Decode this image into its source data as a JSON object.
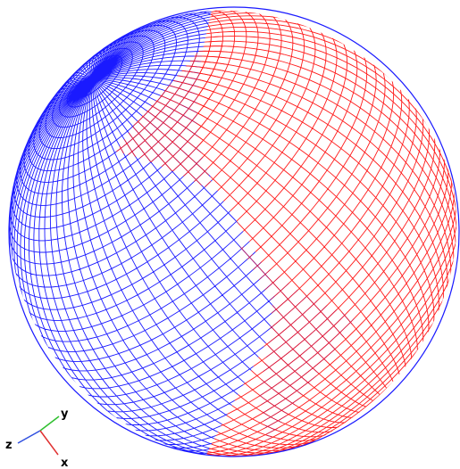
{
  "scene": {
    "description_shapes": [
      "sphere-wireframe",
      "patch-left",
      "patch-right"
    ],
    "colors": {
      "blue": "#1a1aff",
      "red": "#ff1a1a",
      "axis_x": "#e03030",
      "axis_y": "#30c030",
      "axis_z": "#3050e0"
    }
  },
  "axes": {
    "x_label": "x",
    "y_label": "y",
    "z_label": "z"
  }
}
